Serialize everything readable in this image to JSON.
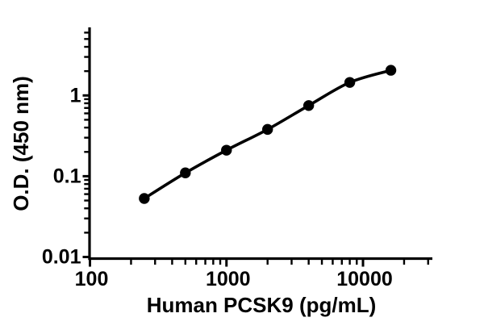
{
  "figure": {
    "background_color": "#ffffff",
    "axis_color": "#000000",
    "text_color": "#000000"
  },
  "chart_data": {
    "type": "line",
    "subtype": "scatter-with-fitted-curve",
    "title": "",
    "xlabel": "Human PCSK9 (pg/mL)",
    "ylabel": "O.D. (450 nm)",
    "x_scale": "log",
    "y_scale": "log",
    "xlim": [
      100,
      33000
    ],
    "ylim": [
      0.01,
      6.8
    ],
    "grid": "off",
    "legend": "none",
    "x_major_ticks": [
      {
        "value": 100,
        "label": "100"
      },
      {
        "value": 1000,
        "label": "1000"
      },
      {
        "value": 10000,
        "label": "10000"
      }
    ],
    "x_minor_ticks": [
      200,
      300,
      400,
      500,
      600,
      700,
      800,
      900,
      2000,
      3000,
      4000,
      5000,
      6000,
      7000,
      8000,
      9000,
      20000,
      30000
    ],
    "y_major_ticks": [
      {
        "value": 0.01,
        "label": "0.01"
      },
      {
        "value": 0.1,
        "label": "0.1"
      },
      {
        "value": 1,
        "label": "1"
      }
    ],
    "y_minor_ticks": [
      0.02,
      0.03,
      0.04,
      0.05,
      0.06,
      0.07,
      0.08,
      0.09,
      0.2,
      0.3,
      0.4,
      0.5,
      0.6,
      0.7,
      0.8,
      0.9,
      2,
      3,
      4,
      5,
      6
    ],
    "x": [
      250,
      500,
      1000,
      2000,
      4000,
      8000,
      16000
    ],
    "y": [
      0.053,
      0.11,
      0.21,
      0.38,
      0.75,
      1.45,
      2.05
    ],
    "marker": {
      "shape": "circle",
      "fill": "#000000",
      "radius": 6.7
    },
    "line": {
      "color": "#000000",
      "width": 3.6,
      "style": "solid",
      "smooth": true
    }
  }
}
